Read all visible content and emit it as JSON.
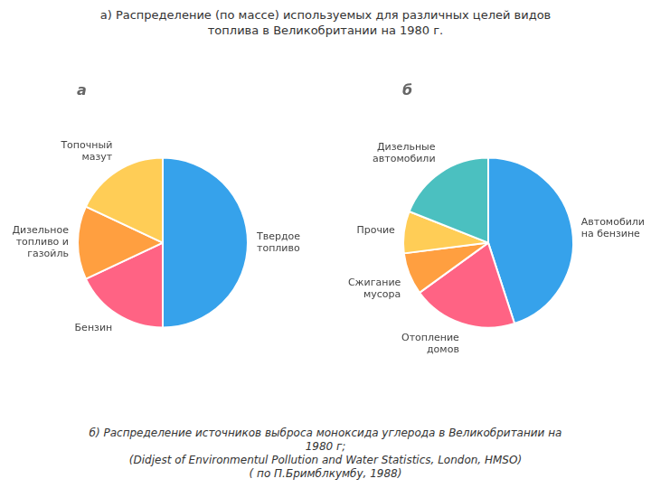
{
  "title": "а) Распределение (по массе) используемых для различных целей видов\nтоплива в Великобритании на 1980 г.",
  "subtitle": "б) Распределение источников выброса моноксида углерода в Великобритании на\n1980 г;\n(Didjest of Environmentul Pollution and Water Statistics, London, HMSO)\n( по П.Бримблкумбу, 1988)",
  "chart_data": [
    {
      "type": "pie",
      "title": "а",
      "categories": [
        "Твердое\nтопливо",
        "Бензин",
        "Дизельное\nтопливо и\nгазойль",
        "Топочный\nмазут"
      ],
      "values": [
        50,
        18,
        14,
        18
      ]
    },
    {
      "type": "pie",
      "title": "б",
      "categories": [
        "Автомобили\nна бензине",
        "Отопление\nдомов",
        "Сжигание\nмусора",
        "Прочие",
        "Дизельные\nавтомобили"
      ],
      "values": [
        45,
        20,
        8,
        8,
        19
      ]
    }
  ]
}
